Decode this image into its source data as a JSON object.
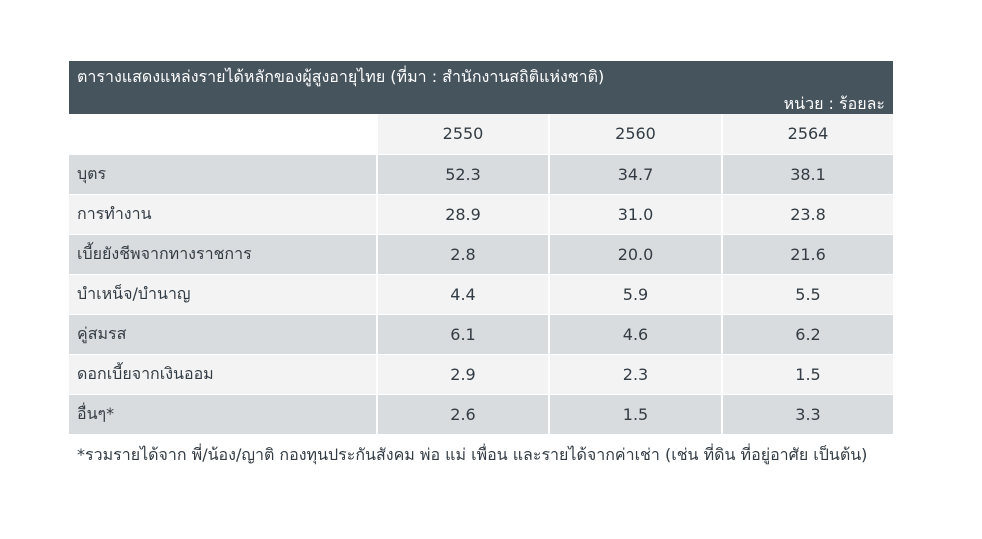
{
  "table": {
    "title": "ตารางแสดงแหล่งรายได้หลักของผู้สูงอายุไทย (ที่มา : สำนักงานสถิติแห่งชาติ)",
    "unit": "หน่วย : ร้อยละ",
    "columns": [
      "2550",
      "2560",
      "2564"
    ],
    "rows": [
      {
        "label": "บุตร",
        "values": [
          "52.3",
          "34.7",
          "38.1"
        ]
      },
      {
        "label": "การทำงาน",
        "values": [
          "28.9",
          "31.0",
          "23.8"
        ]
      },
      {
        "label": "เบี้ยยังชีพจากทางราชการ",
        "values": [
          "2.8",
          "20.0",
          "21.6"
        ]
      },
      {
        "label": "บำเหน็จ/บำนาญ",
        "values": [
          "4.4",
          "5.9",
          "5.5"
        ]
      },
      {
        "label": "คู่สมรส",
        "values": [
          "6.1",
          "4.6",
          "6.2"
        ]
      },
      {
        "label": "ดอกเบี้ยจากเงินออม",
        "values": [
          "2.9",
          "2.3",
          "1.5"
        ]
      },
      {
        "label": "อื่นๆ*",
        "values": [
          "2.6",
          "1.5",
          "3.3"
        ]
      }
    ],
    "footnote": "*รวมรายได้จาก พี่/น้อง/ญาติ กองทุนประกันสังคม พ่อ แม่ เพื่อน และรายได้จากค่าเช่า (เช่น ที่ดิน ที่อยู่อาศัย เป็นต้น)"
  },
  "colors": {
    "header_bg": "#46545e",
    "row_dark": "#d9dcdf",
    "row_light": "#f3f3f3",
    "text": "#333c44"
  }
}
